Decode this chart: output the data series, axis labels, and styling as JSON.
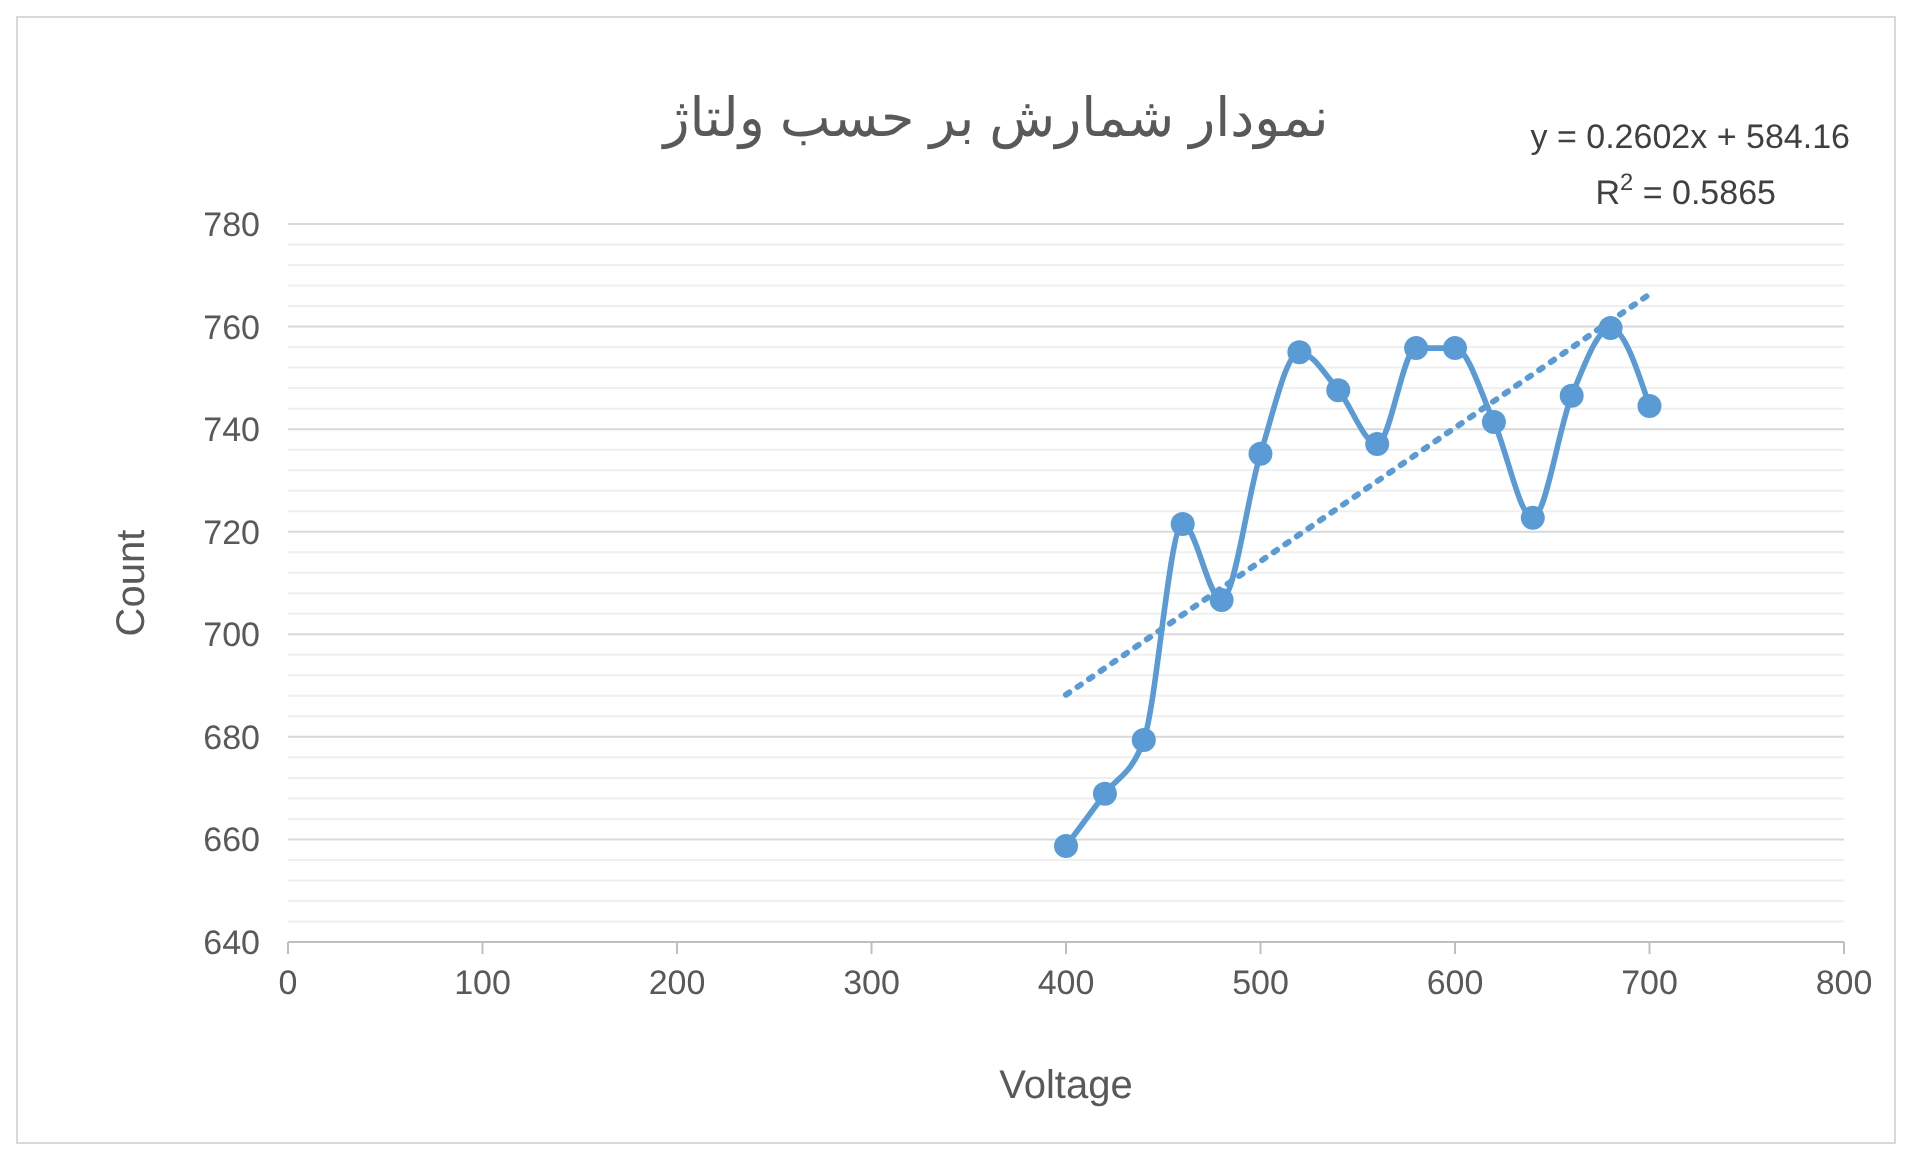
{
  "chart_data": {
    "type": "line",
    "title": "نمودار شمارش بر حسب ولتاژ",
    "xlabel": "Voltage",
    "ylabel": "Count",
    "xlim": [
      0,
      800
    ],
    "xticks": [
      0,
      100,
      200,
      300,
      400,
      500,
      600,
      700,
      800
    ],
    "ylim": [
      640,
      780
    ],
    "yticks": [
      640,
      660,
      680,
      700,
      720,
      740,
      760,
      780
    ],
    "grid": "y",
    "series": [
      {
        "color": "#5b9bd5",
        "marker": "circle",
        "line_style": "solid",
        "x": [
          400,
          420,
          440,
          460,
          480,
          500,
          520,
          540,
          560,
          580,
          600,
          620,
          640,
          660,
          680,
          700
        ],
        "values": [
          658.7,
          668.9,
          679.4,
          721.5,
          706.7,
          735.2,
          755.0,
          747.6,
          737.1,
          755.8,
          755.8,
          741.4,
          722.7,
          746.5,
          759.7,
          744.5
        ]
      },
      {
        "color": "#5b9bd5",
        "marker": "none",
        "line_style": "dotted",
        "x": [
          400,
          700
        ],
        "values": [
          688.2,
          766.3
        ]
      }
    ],
    "annotations": [
      "y = 0.2602x + 584.16",
      "R$^{2}$ = 0.5865"
    ]
  }
}
